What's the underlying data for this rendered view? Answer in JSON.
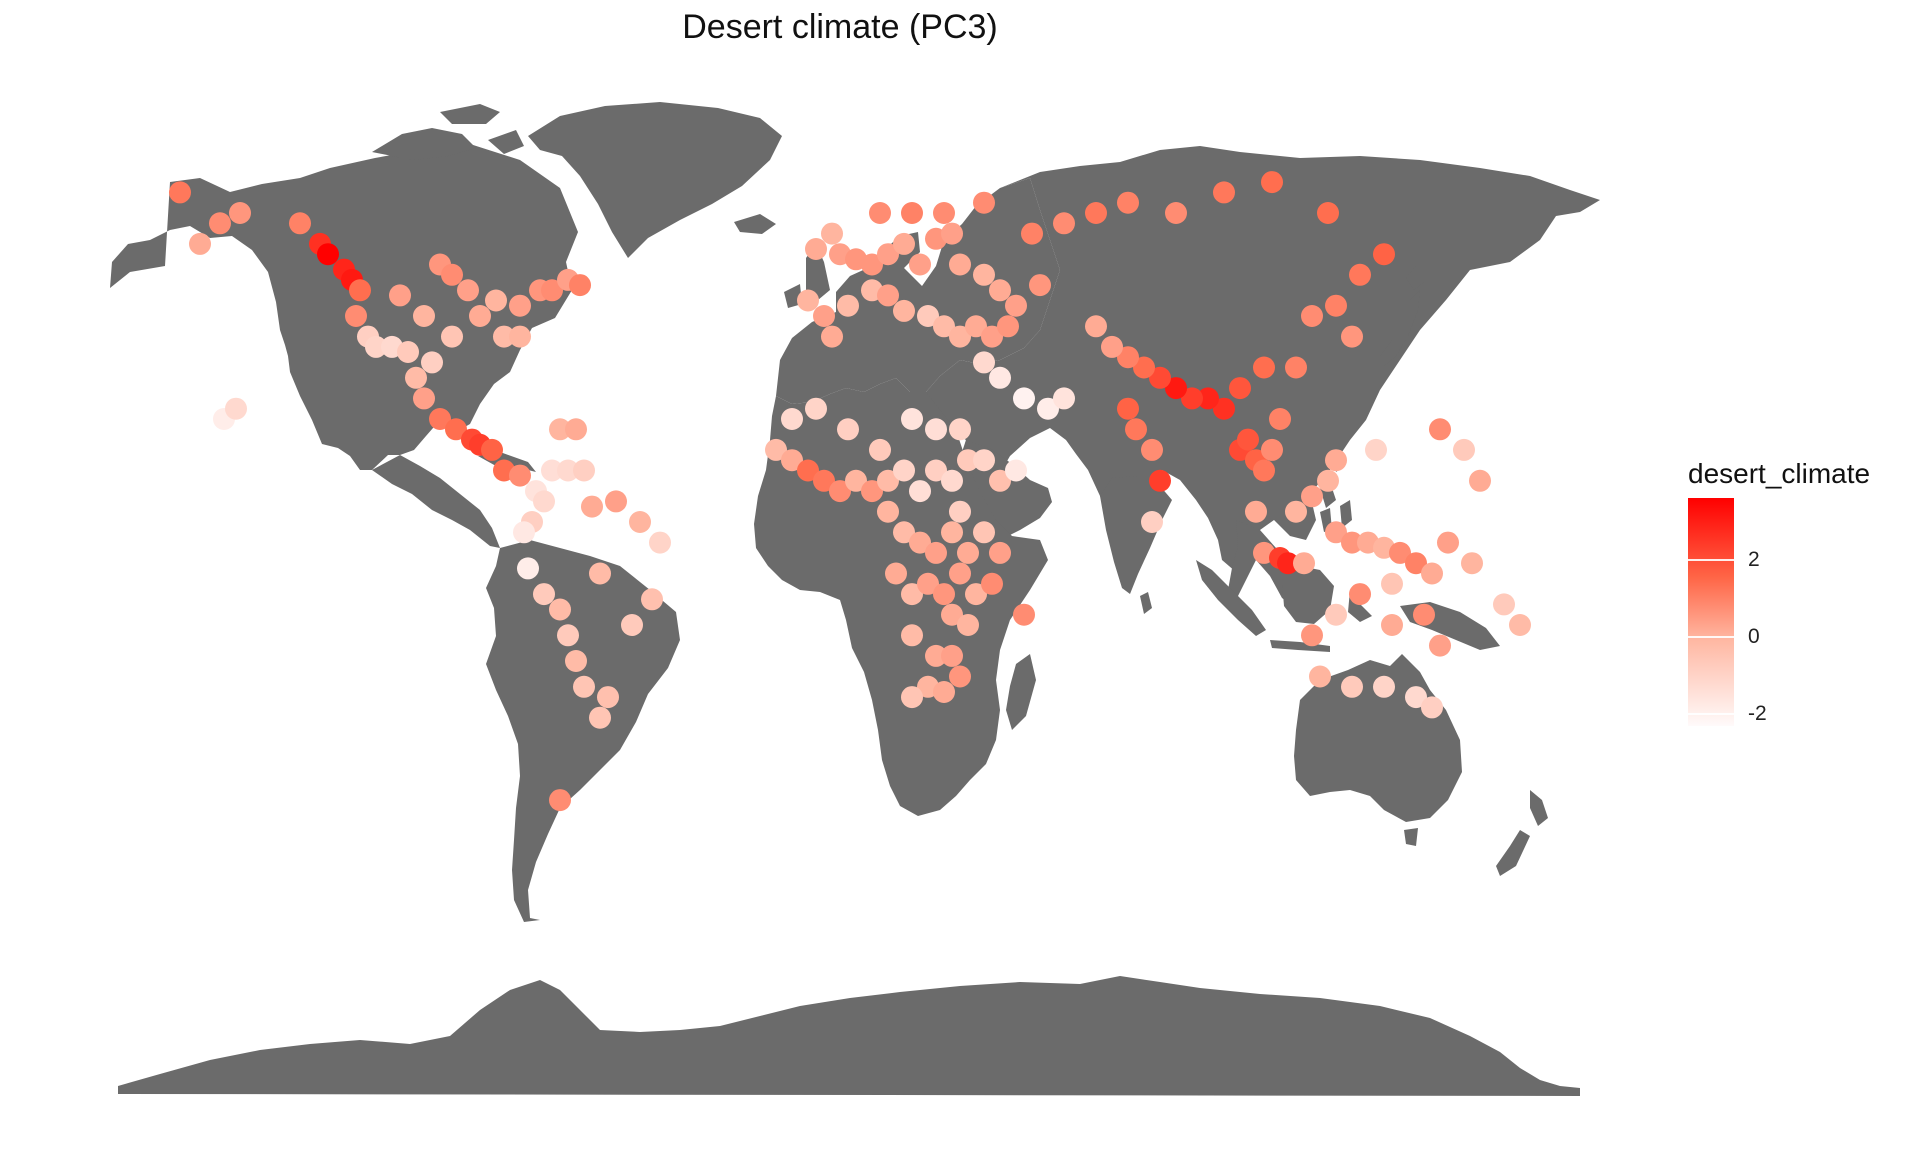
{
  "title": "Desert climate (PC3)",
  "legend": {
    "title": "desert_climate",
    "ticks": [
      "2",
      "0",
      "-2"
    ],
    "tick_values": [
      2,
      0,
      -2
    ],
    "range": [
      -2.3,
      3.6
    ],
    "colors": {
      "low": "#fffafa",
      "mid": "#ffb7a2",
      "high": "#ff0000"
    }
  },
  "colors": {
    "land": "#6b6b6b",
    "background": "#ffffff"
  },
  "chart_data": {
    "type": "scatter",
    "projection": "equirectangular",
    "title": "Desert climate (PC3)",
    "color_variable": "desert_climate",
    "points": [
      [
        -165,
        64,
        1.6
      ],
      [
        -155,
        58,
        1.2
      ],
      [
        -150,
        60,
        1.0
      ],
      [
        -160,
        54,
        0.6
      ],
      [
        -135,
        58,
        1.4
      ],
      [
        -130,
        54,
        2.8
      ],
      [
        -128,
        52,
        3.6
      ],
      [
        -124,
        49,
        3.0
      ],
      [
        -122,
        47,
        3.2
      ],
      [
        -120,
        45,
        1.8
      ],
      [
        -121,
        40,
        1.2
      ],
      [
        -118,
        36,
        -0.6
      ],
      [
        -116,
        34,
        -0.8
      ],
      [
        -112,
        34,
        -1.0
      ],
      [
        -108,
        33,
        -0.4
      ],
      [
        -110,
        44,
        0.8
      ],
      [
        -104,
        40,
        0.4
      ],
      [
        -100,
        50,
        1.0
      ],
      [
        -97,
        48,
        1.2
      ],
      [
        -93,
        45,
        0.8
      ],
      [
        -90,
        40,
        0.6
      ],
      [
        -86,
        43,
        0.4
      ],
      [
        -80,
        42,
        0.8
      ],
      [
        -75,
        45,
        1.0
      ],
      [
        -72,
        45,
        1.2
      ],
      [
        -68,
        47,
        0.8
      ],
      [
        -65,
        46,
        1.4
      ],
      [
        -84,
        36,
        0.2
      ],
      [
        -80,
        36,
        0.4
      ],
      [
        -97,
        36,
        -0.2
      ],
      [
        -102,
        31,
        -0.6
      ],
      [
        -106,
        28,
        0.2
      ],
      [
        -104,
        24,
        0.8
      ],
      [
        -100,
        20,
        1.6
      ],
      [
        -96,
        18,
        1.8
      ],
      [
        -92,
        16,
        2.4
      ],
      [
        -90,
        15,
        2.6
      ],
      [
        -87,
        14,
        2.0
      ],
      [
        -84,
        10,
        1.8
      ],
      [
        -80,
        9,
        1.2
      ],
      [
        -76,
        6,
        -1.4
      ],
      [
        -74,
        4,
        -1.0
      ],
      [
        -77,
        0,
        -0.6
      ],
      [
        -79,
        -2,
        -1.6
      ],
      [
        -78,
        -9,
        -1.8
      ],
      [
        -74,
        -14,
        -0.4
      ],
      [
        -70,
        -17,
        0.2
      ],
      [
        -68,
        -22,
        -0.4
      ],
      [
        -66,
        -27,
        0.2
      ],
      [
        -64,
        -32,
        -0.2
      ],
      [
        -58,
        -34,
        0.0
      ],
      [
        -60,
        -38,
        -0.2
      ],
      [
        -70,
        -54,
        1.2
      ],
      [
        -47,
        -15,
        0.0
      ],
      [
        -52,
        -20,
        -0.4
      ],
      [
        -60,
        -10,
        0.2
      ],
      [
        -62,
        3,
        0.6
      ],
      [
        -56,
        4,
        0.8
      ],
      [
        -50,
        0,
        0.4
      ],
      [
        -45,
        -4,
        -0.8
      ],
      [
        -72,
        10,
        -1.2
      ],
      [
        -68,
        10,
        -1.0
      ],
      [
        -64,
        10,
        -0.6
      ],
      [
        -70,
        18,
        0.4
      ],
      [
        -66,
        18,
        0.6
      ],
      [
        -154,
        20,
        -1.8
      ],
      [
        -151,
        22,
        -1.0
      ],
      [
        -8,
        43,
        0.4
      ],
      [
        -4,
        40,
        0.8
      ],
      [
        -2,
        36,
        0.6
      ],
      [
        2,
        42,
        0.2
      ],
      [
        8,
        45,
        0.2
      ],
      [
        12,
        44,
        0.8
      ],
      [
        16,
        41,
        0.4
      ],
      [
        22,
        40,
        -0.4
      ],
      [
        26,
        38,
        0.2
      ],
      [
        30,
        36,
        0.4
      ],
      [
        34,
        38,
        0.6
      ],
      [
        38,
        36,
        0.8
      ],
      [
        42,
        38,
        1.0
      ],
      [
        36,
        31,
        -1.0
      ],
      [
        40,
        28,
        -1.6
      ],
      [
        46,
        24,
        -2.0
      ],
      [
        52,
        22,
        -1.8
      ],
      [
        56,
        24,
        -1.4
      ],
      [
        -6,
        53,
        0.6
      ],
      [
        -2,
        56,
        0.4
      ],
      [
        0,
        52,
        0.8
      ],
      [
        4,
        51,
        1.0
      ],
      [
        8,
        50,
        1.0
      ],
      [
        12,
        52,
        0.8
      ],
      [
        16,
        54,
        0.6
      ],
      [
        20,
        50,
        0.8
      ],
      [
        24,
        55,
        1.0
      ],
      [
        28,
        56,
        0.8
      ],
      [
        30,
        50,
        0.6
      ],
      [
        36,
        48,
        0.4
      ],
      [
        40,
        45,
        0.6
      ],
      [
        44,
        42,
        0.8
      ],
      [
        50,
        46,
        1.0
      ],
      [
        10,
        60,
        1.2
      ],
      [
        18,
        60,
        1.4
      ],
      [
        26,
        60,
        1.2
      ],
      [
        36,
        62,
        1.2
      ],
      [
        48,
        56,
        1.4
      ],
      [
        56,
        58,
        1.2
      ],
      [
        64,
        60,
        1.6
      ],
      [
        72,
        62,
        1.4
      ],
      [
        84,
        60,
        1.2
      ],
      [
        96,
        64,
        1.6
      ],
      [
        108,
        66,
        1.8
      ],
      [
        122,
        60,
        1.8
      ],
      [
        136,
        52,
        2.0
      ],
      [
        130,
        48,
        1.6
      ],
      [
        124,
        42,
        1.4
      ],
      [
        128,
        36,
        1.0
      ],
      [
        118,
        40,
        1.2
      ],
      [
        114,
        30,
        1.4
      ],
      [
        106,
        30,
        1.8
      ],
      [
        100,
        26,
        2.2
      ],
      [
        96,
        22,
        2.8
      ],
      [
        92,
        24,
        3.0
      ],
      [
        88,
        24,
        2.6
      ],
      [
        84,
        26,
        3.2
      ],
      [
        80,
        28,
        2.4
      ],
      [
        76,
        30,
        1.8
      ],
      [
        72,
        32,
        1.4
      ],
      [
        68,
        34,
        0.8
      ],
      [
        64,
        38,
        0.6
      ],
      [
        72,
        22,
        2.0
      ],
      [
        74,
        18,
        1.6
      ],
      [
        78,
        14,
        1.2
      ],
      [
        80,
        8,
        2.6
      ],
      [
        78,
        0,
        -0.6
      ],
      [
        100,
        14,
        2.4
      ],
      [
        102,
        16,
        2.2
      ],
      [
        104,
        12,
        2.0
      ],
      [
        106,
        10,
        1.6
      ],
      [
        108,
        14,
        1.2
      ],
      [
        110,
        20,
        1.4
      ],
      [
        104,
        2,
        0.6
      ],
      [
        106,
        -6,
        1.0
      ],
      [
        110,
        -7,
        2.6
      ],
      [
        112,
        -8,
        3.0
      ],
      [
        116,
        -8,
        0.6
      ],
      [
        114,
        2,
        0.4
      ],
      [
        118,
        5,
        0.8
      ],
      [
        122,
        8,
        0.4
      ],
      [
        124,
        12,
        0.6
      ],
      [
        124,
        -2,
        0.8
      ],
      [
        128,
        -4,
        1.0
      ],
      [
        132,
        -4,
        0.6
      ],
      [
        136,
        -5,
        0.4
      ],
      [
        140,
        -6,
        1.2
      ],
      [
        144,
        -8,
        1.4
      ],
      [
        148,
        -10,
        0.6
      ],
      [
        152,
        -4,
        0.8
      ],
      [
        158,
        -8,
        0.4
      ],
      [
        166,
        -16,
        -0.4
      ],
      [
        170,
        -20,
        0.2
      ],
      [
        160,
        8,
        0.6
      ],
      [
        156,
        14,
        -0.4
      ],
      [
        150,
        18,
        1.2
      ],
      [
        134,
        14,
        -0.8
      ],
      [
        118,
        -22,
        1.0
      ],
      [
        120,
        -30,
        0.4
      ],
      [
        128,
        -32,
        -0.4
      ],
      [
        136,
        -32,
        -0.8
      ],
      [
        144,
        -34,
        -1.0
      ],
      [
        148,
        -36,
        -0.6
      ],
      [
        138,
        -20,
        0.6
      ],
      [
        146,
        -18,
        1.2
      ],
      [
        150,
        -24,
        0.8
      ],
      [
        138,
        -12,
        -0.2
      ],
      [
        130,
        -14,
        1.2
      ],
      [
        124,
        -18,
        -0.4
      ],
      [
        -16,
        14,
        0.2
      ],
      [
        -12,
        12,
        0.6
      ],
      [
        -8,
        10,
        1.8
      ],
      [
        -4,
        8,
        1.6
      ],
      [
        0,
        6,
        1.2
      ],
      [
        4,
        8,
        0.4
      ],
      [
        8,
        6,
        1.0
      ],
      [
        12,
        8,
        0.2
      ],
      [
        16,
        10,
        -0.8
      ],
      [
        20,
        6,
        -1.2
      ],
      [
        24,
        10,
        -0.6
      ],
      [
        28,
        8,
        -1.0
      ],
      [
        32,
        12,
        -0.4
      ],
      [
        36,
        12,
        -0.8
      ],
      [
        40,
        8,
        0.0
      ],
      [
        44,
        10,
        -1.6
      ],
      [
        -12,
        20,
        -1.0
      ],
      [
        -6,
        22,
        -0.8
      ],
      [
        2,
        18,
        -0.6
      ],
      [
        10,
        14,
        -0.4
      ],
      [
        18,
        20,
        -1.4
      ],
      [
        24,
        18,
        -1.2
      ],
      [
        30,
        18,
        -0.8
      ],
      [
        12,
        2,
        0.4
      ],
      [
        16,
        -2,
        0.2
      ],
      [
        20,
        -4,
        0.6
      ],
      [
        24,
        -6,
        0.8
      ],
      [
        28,
        -2,
        0.4
      ],
      [
        32,
        -6,
        0.6
      ],
      [
        36,
        -2,
        -0.2
      ],
      [
        40,
        -6,
        0.8
      ],
      [
        14,
        -10,
        0.6
      ],
      [
        18,
        -14,
        0.2
      ],
      [
        22,
        -12,
        0.8
      ],
      [
        26,
        -14,
        1.0
      ],
      [
        30,
        -10,
        0.8
      ],
      [
        34,
        -14,
        0.4
      ],
      [
        38,
        -12,
        1.2
      ],
      [
        28,
        -18,
        0.6
      ],
      [
        32,
        -20,
        0.4
      ],
      [
        18,
        -22,
        0.2
      ],
      [
        24,
        -26,
        0.6
      ],
      [
        28,
        -26,
        0.8
      ],
      [
        30,
        -30,
        1.0
      ],
      [
        22,
        -32,
        0.4
      ],
      [
        18,
        -34,
        -0.2
      ],
      [
        26,
        -33,
        0.6
      ],
      [
        46,
        -18,
        1.2
      ],
      [
        30,
        2,
        -0.6
      ]
    ]
  }
}
